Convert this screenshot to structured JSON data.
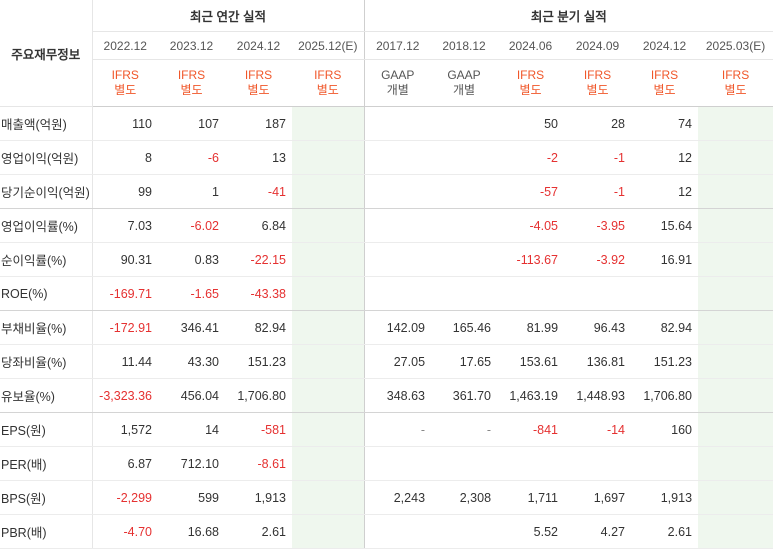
{
  "header": {
    "corner_label": "주요재무정보",
    "annual_title": "최근 연간 실적",
    "quarterly_title": "최근 분기 실적",
    "annual_periods": [
      "2022.12",
      "2023.12",
      "2024.12",
      "2025.12(E)"
    ],
    "quarterly_periods": [
      "2017.12",
      "2018.12",
      "2024.06",
      "2024.09",
      "2024.12",
      "2025.03(E)"
    ],
    "annual_standards": [
      {
        "line1": "IFRS",
        "line2": "별도"
      },
      {
        "line1": "IFRS",
        "line2": "별도"
      },
      {
        "line1": "IFRS",
        "line2": "별도"
      },
      {
        "line1": "IFRS",
        "line2": "별도"
      }
    ],
    "quarterly_standards": [
      {
        "line1": "GAAP",
        "line2": "개별"
      },
      {
        "line1": "GAAP",
        "line2": "개별"
      },
      {
        "line1": "IFRS",
        "line2": "별도"
      },
      {
        "line1": "IFRS",
        "line2": "별도"
      },
      {
        "line1": "IFRS",
        "line2": "별도"
      },
      {
        "line1": "IFRS",
        "line2": "별도"
      }
    ]
  },
  "rows": [
    {
      "label": "매출액(억원)",
      "annual": [
        "110",
        "107",
        "187",
        ""
      ],
      "quarterly": [
        "",
        "",
        "50",
        "28",
        "74",
        ""
      ]
    },
    {
      "label": "영업이익(억원)",
      "annual": [
        "8",
        "-6",
        "13",
        ""
      ],
      "quarterly": [
        "",
        "",
        "-2",
        "-1",
        "12",
        ""
      ]
    },
    {
      "label": "당기순이익(억원)",
      "annual": [
        "99",
        "1",
        "-41",
        ""
      ],
      "quarterly": [
        "",
        "",
        "-57",
        "-1",
        "12",
        ""
      ]
    },
    {
      "label": "영업이익률(%)",
      "annual": [
        "7.03",
        "-6.02",
        "6.84",
        ""
      ],
      "quarterly": [
        "",
        "",
        "-4.05",
        "-3.95",
        "15.64",
        ""
      ]
    },
    {
      "label": "순이익률(%)",
      "annual": [
        "90.31",
        "0.83",
        "-22.15",
        ""
      ],
      "quarterly": [
        "",
        "",
        "-113.67",
        "-3.92",
        "16.91",
        ""
      ]
    },
    {
      "label": "ROE(%)",
      "annual": [
        "-169.71",
        "-1.65",
        "-43.38",
        ""
      ],
      "quarterly": [
        "",
        "",
        "",
        "",
        "",
        ""
      ]
    },
    {
      "label": "부채비율(%)",
      "annual": [
        "-172.91",
        "346.41",
        "82.94",
        ""
      ],
      "quarterly": [
        "142.09",
        "165.46",
        "81.99",
        "96.43",
        "82.94",
        ""
      ]
    },
    {
      "label": "당좌비율(%)",
      "annual": [
        "11.44",
        "43.30",
        "151.23",
        ""
      ],
      "quarterly": [
        "27.05",
        "17.65",
        "153.61",
        "136.81",
        "151.23",
        ""
      ]
    },
    {
      "label": "유보율(%)",
      "annual": [
        "-3,323.36",
        "456.04",
        "1,706.80",
        ""
      ],
      "quarterly": [
        "348.63",
        "361.70",
        "1,463.19",
        "1,448.93",
        "1,706.80",
        ""
      ]
    },
    {
      "label": "EPS(원)",
      "annual": [
        "1,572",
        "14",
        "-581",
        ""
      ],
      "quarterly": [
        "-",
        "-",
        "-841",
        "-14",
        "160",
        ""
      ]
    },
    {
      "label": "PER(배)",
      "annual": [
        "6.87",
        "712.10",
        "-8.61",
        ""
      ],
      "quarterly": [
        "",
        "",
        "",
        "",
        "",
        ""
      ]
    },
    {
      "label": "BPS(원)",
      "annual": [
        "-2,299",
        "599",
        "1,913",
        ""
      ],
      "quarterly": [
        "2,243",
        "2,308",
        "1,711",
        "1,697",
        "1,913",
        ""
      ]
    },
    {
      "label": "PBR(배)",
      "annual": [
        "-4.70",
        "16.68",
        "2.61",
        ""
      ],
      "quarterly": [
        "",
        "",
        "5.52",
        "4.27",
        "2.61",
        ""
      ]
    }
  ],
  "group_end_rows": [
    2,
    5,
    8
  ],
  "colors": {
    "negative": "#e53131",
    "ifrs": "#f0572a",
    "gaap": "#555555",
    "estimate_bg": "#eff7ee",
    "estimate_text": "#7aa86e"
  }
}
